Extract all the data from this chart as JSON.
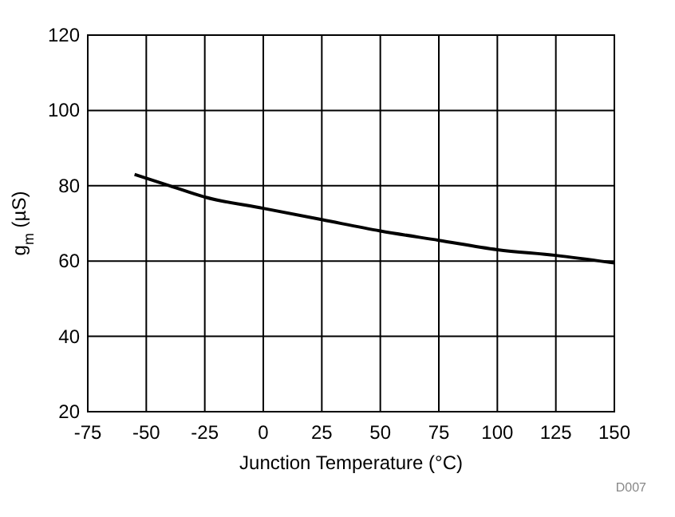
{
  "chart_data": {
    "type": "line",
    "xlabel": "Junction Temperature (°C)",
    "ylabel": "g$_{m}$ (µS)",
    "annotations": [
      "D007"
    ],
    "x": [
      -55,
      -40,
      -25,
      0,
      25,
      50,
      75,
      100,
      125,
      150
    ],
    "series": [
      {
        "color": "#000000",
        "values": [
          83,
          80,
          77,
          74,
          71,
          68,
          65.5,
          63,
          61.5,
          59.5
        ]
      }
    ],
    "xlim": [
      -75,
      150
    ],
    "xticks": [
      -75,
      -50,
      -25,
      0,
      25,
      50,
      75,
      100,
      125,
      150
    ],
    "ylim": [
      20,
      120
    ],
    "yticks": [
      20,
      40,
      60,
      80,
      100,
      120
    ],
    "grid": true,
    "marker": "none",
    "line_style": "solid"
  }
}
